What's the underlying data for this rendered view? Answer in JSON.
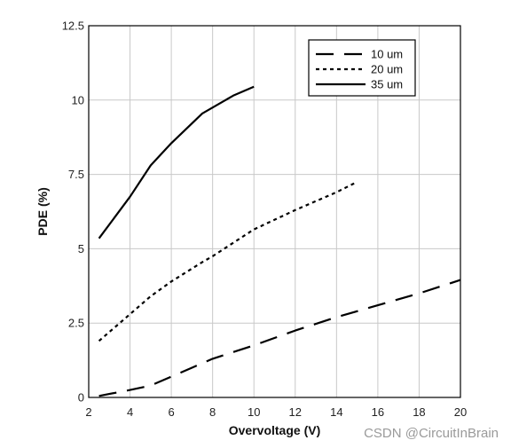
{
  "chart_data": {
    "type": "line",
    "xlabel": "Overvoltage (V)",
    "ylabel": "PDE (%)",
    "xlim": [
      2,
      20
    ],
    "ylim": [
      0,
      12.5
    ],
    "xticks": [
      "2",
      "4",
      "6",
      "8",
      "10",
      "12",
      "14",
      "16",
      "18",
      "20"
    ],
    "yticks": [
      "0",
      "2.5",
      "5",
      "7.5",
      "10",
      "12.5"
    ],
    "grid": true,
    "legend_position": "top-right",
    "series": [
      {
        "name": "10 um",
        "style": "long-dash",
        "color": "#000000",
        "x": [
          2.5,
          4,
          5,
          7,
          8,
          10,
          12,
          14,
          16,
          18,
          20
        ],
        "y": [
          0.05,
          0.25,
          0.4,
          1.0,
          1.3,
          1.75,
          2.25,
          2.7,
          3.1,
          3.5,
          3.95
        ]
      },
      {
        "name": "20 um",
        "style": "short-dash",
        "color": "#000000",
        "x": [
          2.5,
          4,
          5,
          6,
          7.5,
          8,
          10,
          12,
          14,
          15
        ],
        "y": [
          1.9,
          2.8,
          3.4,
          3.9,
          4.55,
          4.75,
          5.65,
          6.3,
          6.9,
          7.25
        ]
      },
      {
        "name": "35 um",
        "style": "solid",
        "color": "#000000",
        "x": [
          2.5,
          4,
          5,
          6,
          7.5,
          8,
          9,
          10
        ],
        "y": [
          5.35,
          6.75,
          7.8,
          8.55,
          9.55,
          9.75,
          10.15,
          10.45
        ]
      }
    ]
  },
  "watermark": "CSDN @CircuitInBrain"
}
